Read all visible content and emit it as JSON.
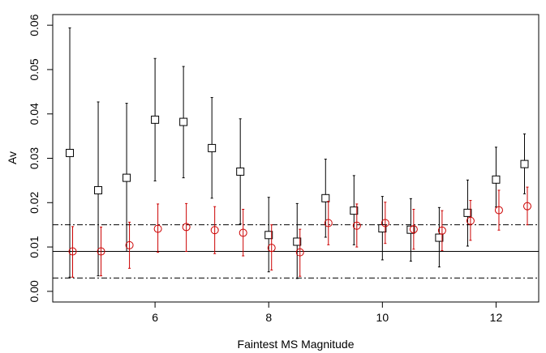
{
  "chart_data": {
    "type": "scatter",
    "title": "",
    "xlabel": "Faintest MS Magnitude",
    "ylabel": "Av",
    "xlim": [
      4.2,
      12.75
    ],
    "ylim": [
      -0.0024,
      0.0624
    ],
    "x_ticks": [
      6,
      8,
      10,
      12
    ],
    "x_tick_labels": [
      "6",
      "8",
      "10",
      "12"
    ],
    "y_ticks": [
      0.0,
      0.01,
      0.02,
      0.03,
      0.04,
      0.05,
      0.06
    ],
    "y_tick_labels": [
      "0.00",
      "0.01",
      "0.02",
      "0.03",
      "0.04",
      "0.05",
      "0.06"
    ],
    "grid": false,
    "legend": "none",
    "series": [
      {
        "marker": "square",
        "color": "#000000",
        "x": [
          4.5,
          5.0,
          5.5,
          6.0,
          6.5,
          7.0,
          7.5,
          8.0,
          8.5,
          9.0,
          9.5,
          10.0,
          10.5,
          11.0,
          11.5,
          12.0,
          12.5
        ],
        "y": [
          0.0312,
          0.0228,
          0.0256,
          0.0387,
          0.0382,
          0.0323,
          0.027,
          0.0127,
          0.0112,
          0.021,
          0.0182,
          0.0142,
          0.0139,
          0.0121,
          0.0177,
          0.0252,
          0.0287
        ],
        "y_low": [
          0.0032,
          0.0035,
          0.009,
          0.0249,
          0.0256,
          0.021,
          0.0152,
          0.0044,
          0.0029,
          0.0122,
          0.0105,
          0.0071,
          0.0068,
          0.0055,
          0.0102,
          0.019,
          0.022
        ],
        "y_high": [
          0.0594,
          0.0427,
          0.0424,
          0.0525,
          0.0507,
          0.0437,
          0.0389,
          0.0212,
          0.0198,
          0.0298,
          0.0261,
          0.0214,
          0.0209,
          0.0189,
          0.0251,
          0.0325,
          0.0355
        ]
      },
      {
        "marker": "circle",
        "color": "#cc0000",
        "x": [
          4.55,
          5.05,
          5.55,
          6.05,
          6.55,
          7.05,
          7.55,
          8.05,
          8.55,
          9.05,
          9.55,
          10.05,
          10.55,
          11.05,
          11.55,
          12.05,
          12.55
        ],
        "y": [
          0.009,
          0.009,
          0.0104,
          0.0141,
          0.0145,
          0.0138,
          0.0132,
          0.0098,
          0.0088,
          0.0154,
          0.0148,
          0.0154,
          0.014,
          0.0137,
          0.0159,
          0.0183,
          0.0192
        ],
        "y_low": [
          0.0032,
          0.0035,
          0.0052,
          0.0088,
          0.009,
          0.0085,
          0.008,
          0.0048,
          0.0034,
          0.0105,
          0.01,
          0.0108,
          0.0095,
          0.0092,
          0.0115,
          0.0138,
          0.015
        ],
        "y_high": [
          0.0146,
          0.0145,
          0.0156,
          0.0197,
          0.0198,
          0.0191,
          0.0185,
          0.015,
          0.014,
          0.0203,
          0.0197,
          0.0201,
          0.0185,
          0.0182,
          0.0205,
          0.0228,
          0.0235
        ]
      }
    ],
    "hlines": [
      {
        "y": 0.009,
        "style": "solid",
        "color": "#000000"
      },
      {
        "y": 0.015,
        "style": "dashdot",
        "color": "#000000"
      },
      {
        "y": 0.003,
        "style": "dashdot",
        "color": "#000000"
      }
    ]
  }
}
